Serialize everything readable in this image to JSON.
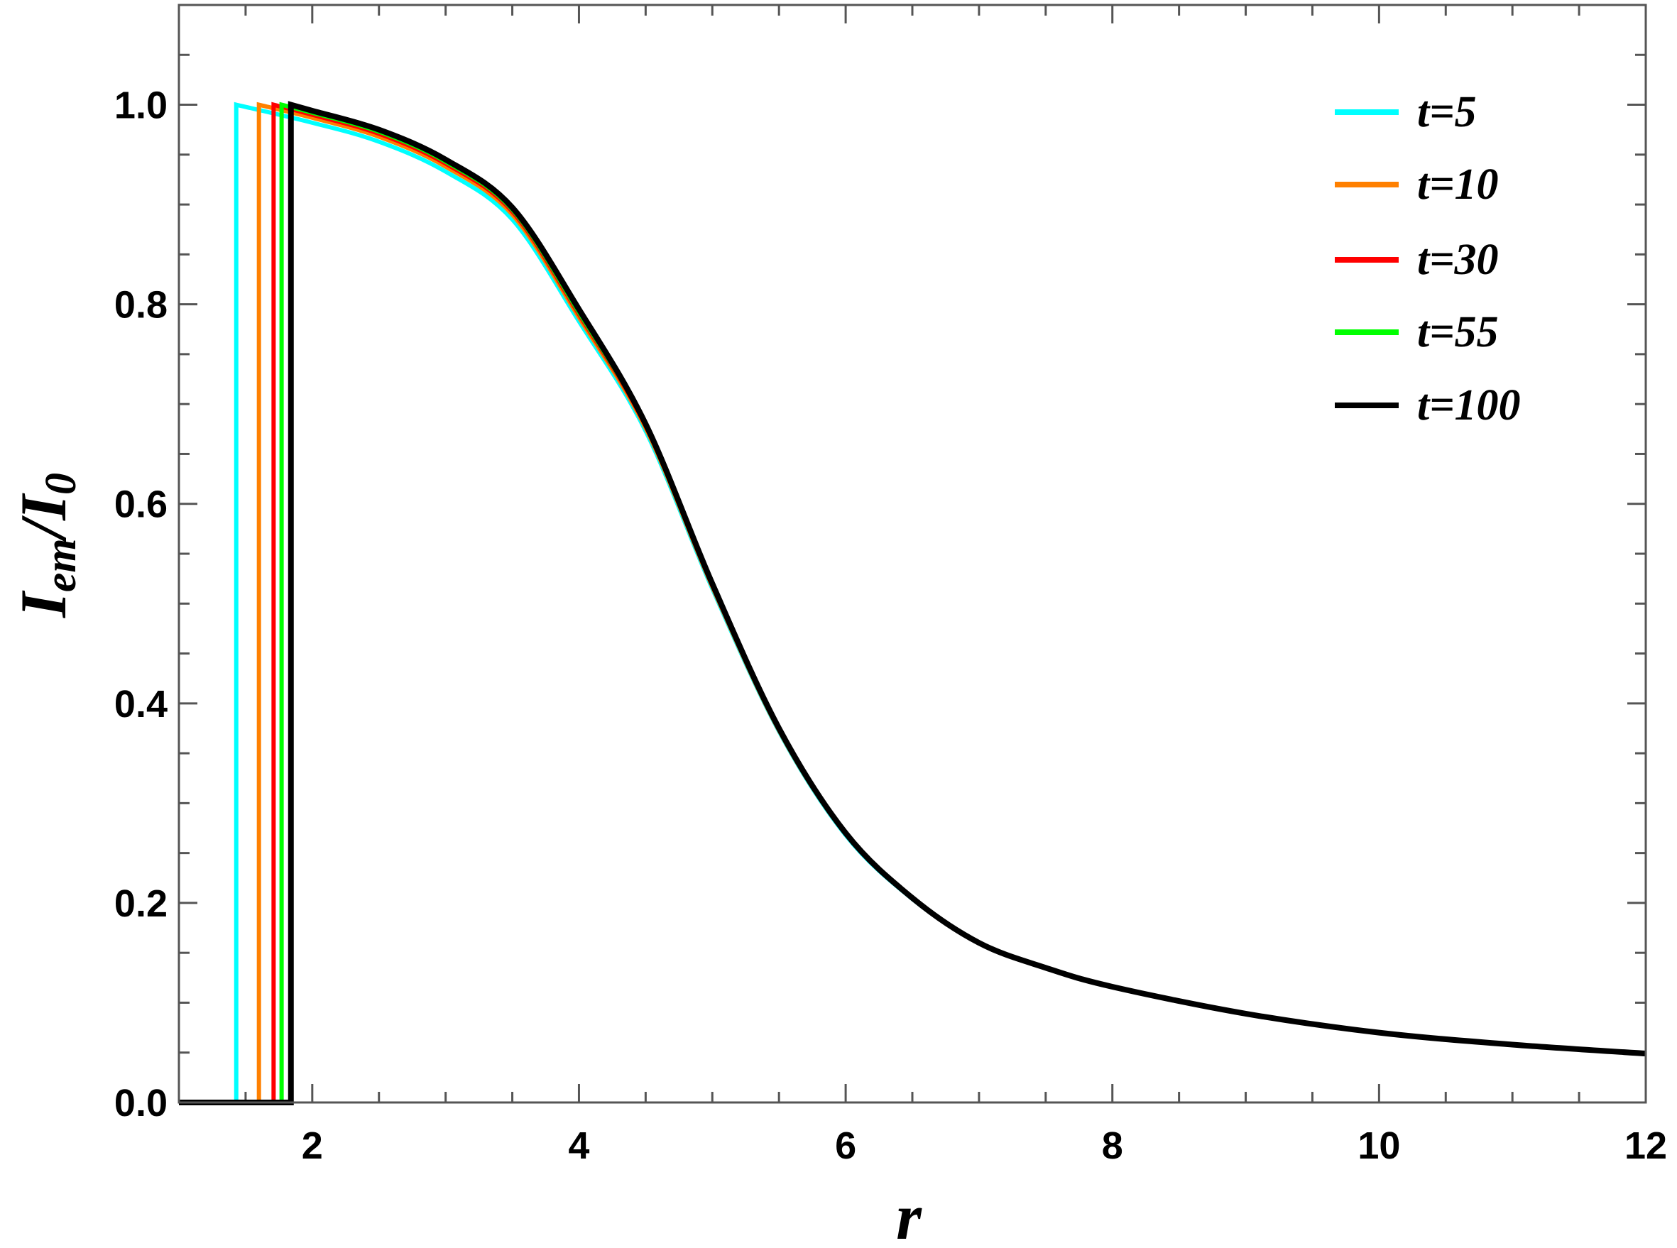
{
  "chart_data": {
    "type": "line",
    "title": "",
    "xlabel": "r",
    "ylabel_main": "I",
    "ylabel_sub1": "em",
    "ylabel_mid": "/I",
    "ylabel_sub2": "0",
    "xlim": [
      1,
      12
    ],
    "ylim": [
      0,
      1.1
    ],
    "xticks": [
      2,
      4,
      6,
      8,
      10,
      12
    ],
    "xtick_labels": [
      "2",
      "4",
      "6",
      "8",
      "10",
      "12"
    ],
    "yticks": [
      0,
      0.2,
      0.4,
      0.6,
      0.8,
      1.0
    ],
    "ytick_labels": [
      "0.0",
      "0.2",
      "0.4",
      "0.6",
      "0.8",
      "1.0"
    ],
    "grid": false,
    "legend_position": "top-right",
    "x": [
      2,
      2.5,
      3,
      3.5,
      4,
      4.5,
      5,
      5.5,
      6,
      6.5,
      7,
      7.5,
      8,
      9,
      10,
      11,
      12
    ],
    "series": [
      {
        "name": "t=5",
        "color": "#00FFFF",
        "edge_r": 1.43,
        "values": [
          0.982,
          0.963,
          0.933,
          0.885,
          0.783,
          0.673,
          0.515,
          0.372,
          0.268,
          0.204,
          0.16,
          0.135,
          0.116,
          0.089,
          0.07,
          0.058,
          0.049
        ]
      },
      {
        "name": "t=10",
        "color": "#FF8000",
        "edge_r": 1.6,
        "values": [
          0.987,
          0.968,
          0.938,
          0.89,
          0.787,
          0.676,
          0.517,
          0.373,
          0.269,
          0.205,
          0.16,
          0.135,
          0.116,
          0.089,
          0.07,
          0.058,
          0.049
        ]
      },
      {
        "name": "t=30",
        "color": "#FF0000",
        "edge_r": 1.71,
        "values": [
          0.99,
          0.971,
          0.941,
          0.893,
          0.79,
          0.678,
          0.518,
          0.374,
          0.27,
          0.205,
          0.16,
          0.135,
          0.116,
          0.089,
          0.07,
          0.058,
          0.049
        ]
      },
      {
        "name": "t=55",
        "color": "#00FF00",
        "edge_r": 1.77,
        "values": [
          0.992,
          0.973,
          0.943,
          0.895,
          0.792,
          0.679,
          0.519,
          0.375,
          0.27,
          0.205,
          0.16,
          0.135,
          0.116,
          0.089,
          0.07,
          0.058,
          0.049
        ]
      },
      {
        "name": "t=100",
        "color": "#000000",
        "edge_r": 1.84,
        "values": [
          0.994,
          0.975,
          0.945,
          0.897,
          0.795,
          0.68,
          0.52,
          0.375,
          0.27,
          0.205,
          0.16,
          0.135,
          0.116,
          0.089,
          0.07,
          0.058,
          0.049
        ]
      }
    ]
  }
}
